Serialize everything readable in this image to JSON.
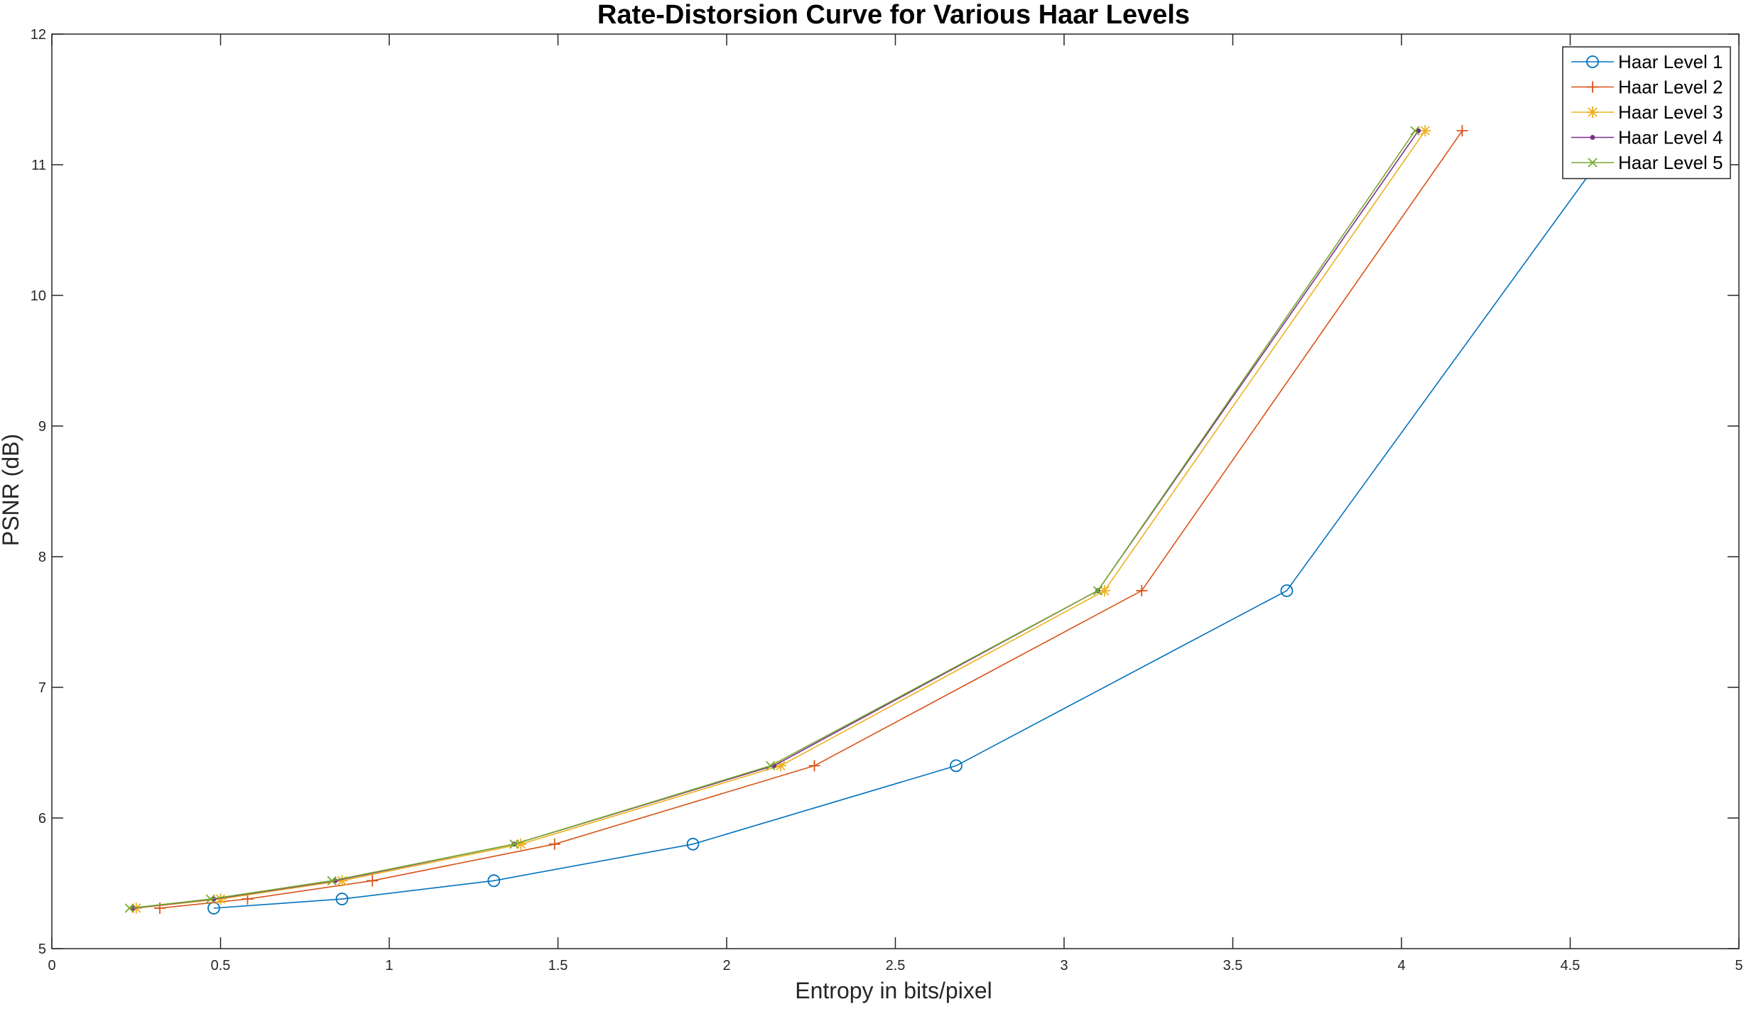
{
  "chart_data": {
    "type": "line",
    "title": "Rate-Distorsion Curve for Various Haar Levels",
    "xlabel": "Entropy in bits/pixel",
    "ylabel": "PSNR (dB)",
    "xlim": [
      0,
      5
    ],
    "ylim": [
      5,
      12
    ],
    "xticks": [
      "0",
      "0.5",
      "1",
      "1.5",
      "2",
      "2.5",
      "3",
      "3.5",
      "4",
      "4.5",
      "5"
    ],
    "yticks": [
      "5",
      "6",
      "7",
      "8",
      "9",
      "10",
      "11",
      "12"
    ],
    "grid": false,
    "legend_position": "top-right",
    "series": [
      {
        "name": "Haar Level 1",
        "color": "#0072BD",
        "marker": "circle",
        "x": [
          0.48,
          0.86,
          1.31,
          1.9,
          2.68,
          3.66,
          4.65
        ],
        "y": [
          5.31,
          5.38,
          5.52,
          5.8,
          6.4,
          7.74,
          11.26
        ]
      },
      {
        "name": "Haar Level 2",
        "color": "#D95319",
        "marker": "plus",
        "x": [
          0.32,
          0.58,
          0.95,
          1.49,
          2.26,
          3.23,
          4.18
        ],
        "y": [
          5.31,
          5.38,
          5.52,
          5.8,
          6.4,
          7.74,
          11.26
        ]
      },
      {
        "name": "Haar Level 3",
        "color": "#EDB120",
        "marker": "asterisk",
        "x": [
          0.25,
          0.5,
          0.86,
          1.39,
          2.16,
          3.12,
          4.07
        ],
        "y": [
          5.31,
          5.38,
          5.52,
          5.8,
          6.4,
          7.74,
          11.26
        ]
      },
      {
        "name": "Haar Level 4",
        "color": "#7E2F8E",
        "marker": "point",
        "x": [
          0.24,
          0.48,
          0.84,
          1.37,
          2.14,
          3.1,
          4.05
        ],
        "y": [
          5.31,
          5.38,
          5.52,
          5.8,
          6.4,
          7.74,
          11.26
        ]
      },
      {
        "name": "Haar Level 5",
        "color": "#77AC30",
        "marker": "x",
        "x": [
          0.23,
          0.47,
          0.83,
          1.37,
          2.13,
          3.1,
          4.04
        ],
        "y": [
          5.31,
          5.38,
          5.52,
          5.8,
          6.4,
          7.74,
          11.26
        ]
      }
    ]
  }
}
